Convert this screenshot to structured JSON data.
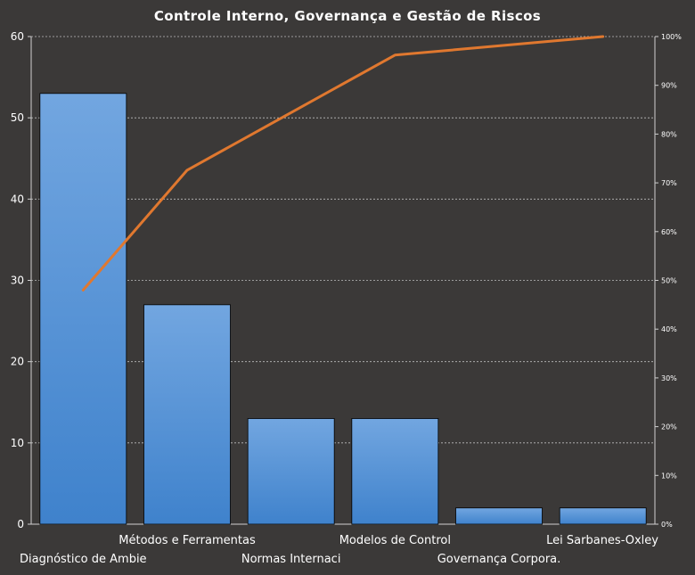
{
  "chart_data": {
    "type": "bar",
    "title": "Controle Interno, Governança e Gestão de Riscos",
    "categories": [
      "Diagnóstico de Ambie",
      "Métodos  e Ferramentas",
      "Normas Internaci",
      "Modelos de Control",
      "Governança  Corpora.",
      "Lei Sarbanes-Oxley"
    ],
    "series": [
      {
        "type": "bar",
        "values": [
          53,
          27,
          13,
          13,
          2,
          2
        ]
      },
      {
        "type": "line",
        "axis": "right",
        "values": [
          48,
          72.6,
          84.4,
          96.2,
          98.1,
          100
        ]
      }
    ],
    "ylim": [
      0,
      60
    ],
    "yticks": [
      "0",
      "10",
      "20",
      "30",
      "40",
      "50",
      "60"
    ],
    "y2lim": [
      0,
      100
    ],
    "y2ticks": [
      "0%",
      "10%",
      "20%",
      "30%",
      "40%",
      "50%",
      "60%",
      "70%",
      "80%",
      "90%",
      "100%"
    ],
    "grid": true,
    "colors": {
      "bar": "#4a90d9",
      "line": "#e0782f",
      "background": "#3b3938",
      "grid": "#bdbdbd"
    }
  }
}
